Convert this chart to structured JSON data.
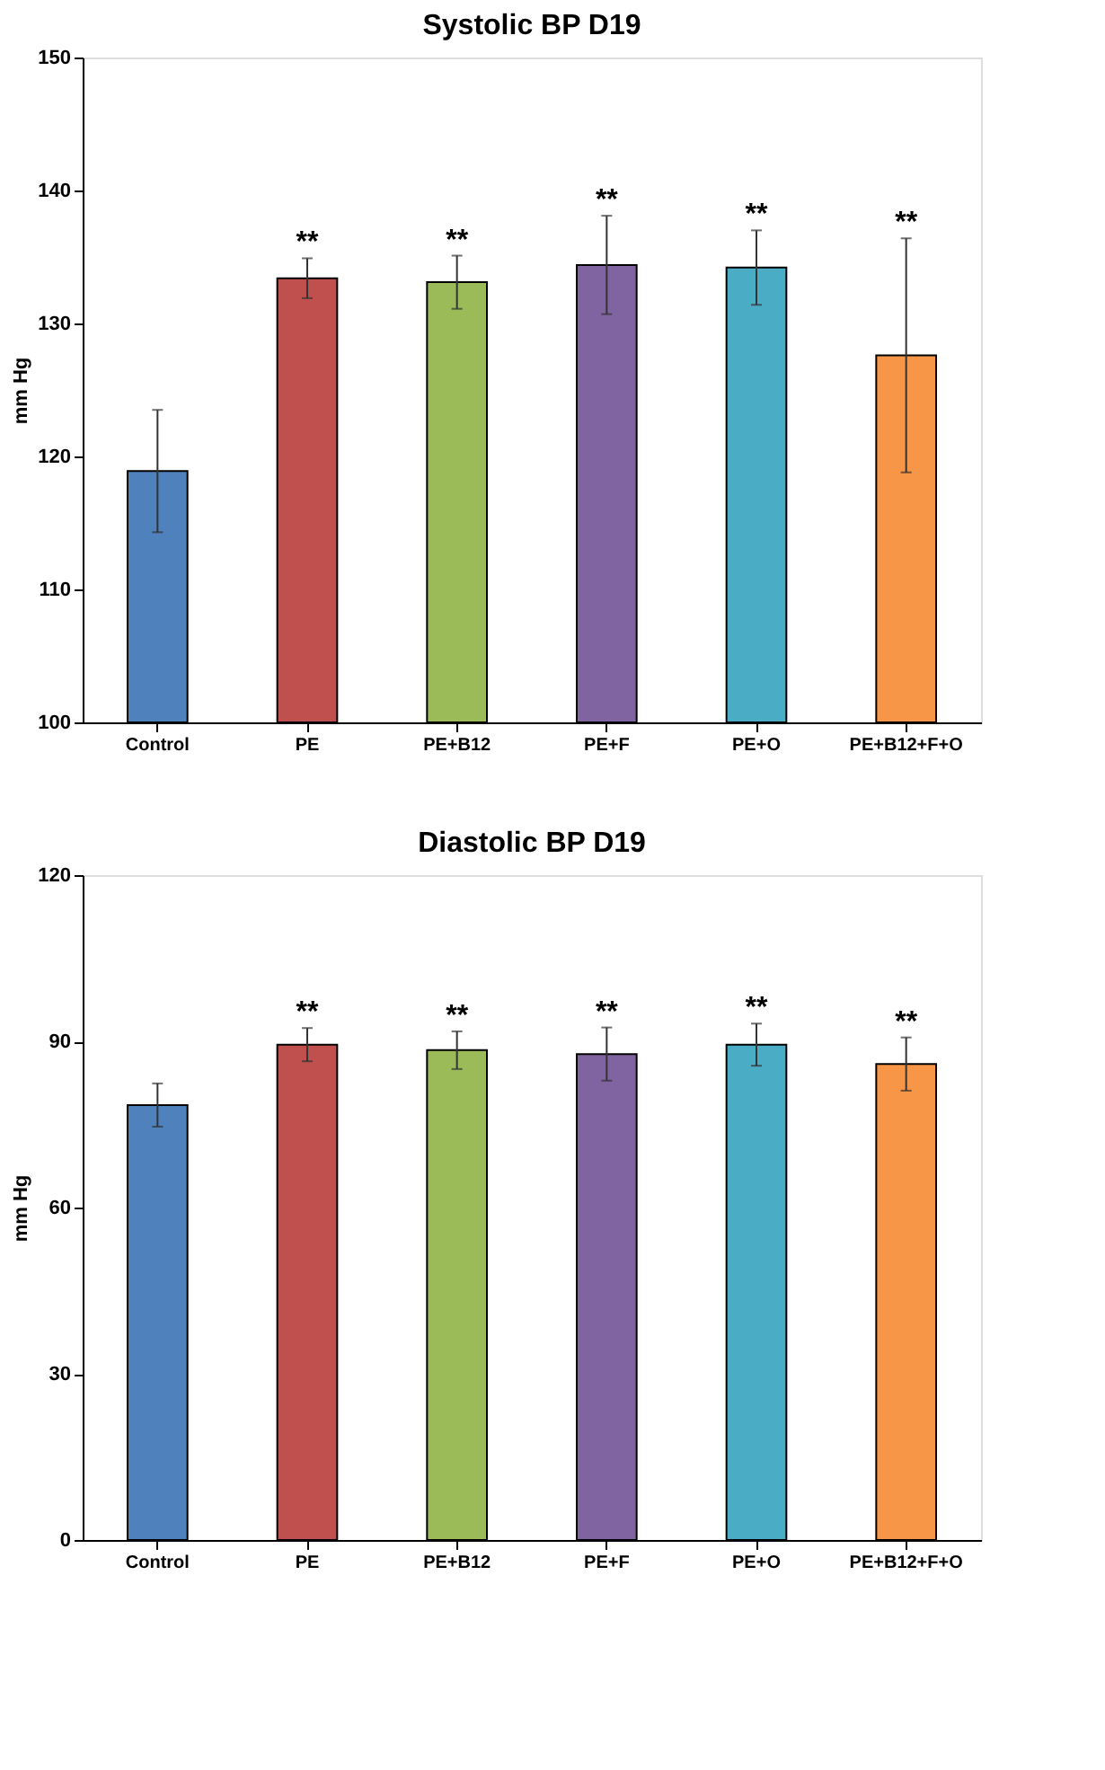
{
  "chart_data": [
    {
      "type": "bar",
      "title": "Systolic BP D19",
      "ylabel": "mm Hg",
      "categories": [
        "Control",
        "PE",
        "PE+B12",
        "PE+F",
        "PE+O",
        "PE+B12+F+O"
      ],
      "values": [
        118.9,
        133.4,
        133.1,
        134.4,
        134.2,
        127.6
      ],
      "errors": [
        4.6,
        1.5,
        2.0,
        3.7,
        2.8,
        8.8
      ],
      "colors": [
        "#4f81bd",
        "#c0504d",
        "#9bbb59",
        "#8064a2",
        "#4bacc6",
        "#f79646"
      ],
      "ylim": [
        100,
        150
      ],
      "yticks": [
        100,
        110,
        120,
        130,
        140,
        150
      ],
      "grid": false,
      "annotations": [
        {
          "text": "**",
          "x": "PE",
          "y": 134.9
        },
        {
          "text": "**",
          "x": "PE+B12",
          "y": 135.1
        },
        {
          "text": "**",
          "x": "PE+F",
          "y": 138.1
        },
        {
          "text": "**",
          "x": "PE+O",
          "y": 137.0
        },
        {
          "text": "**",
          "x": "PE+B12+F+O",
          "y": 136.4
        }
      ]
    },
    {
      "type": "bar",
      "title": "Diastolic BP D19",
      "ylabel": "mm Hg",
      "categories": [
        "Control",
        "PE",
        "PE+B12",
        "PE+F",
        "PE+O",
        "PE+B12+F+O"
      ],
      "values": [
        78.5,
        89.4,
        88.4,
        87.7,
        89.4,
        85.9
      ],
      "errors": [
        3.9,
        3.0,
        3.4,
        4.8,
        3.8,
        4.8
      ],
      "colors": [
        "#4f81bd",
        "#c0504d",
        "#9bbb59",
        "#8064a2",
        "#4bacc6",
        "#f79646"
      ],
      "ylim": [
        0,
        120
      ],
      "yticks": [
        0,
        30,
        60,
        90,
        120
      ],
      "grid": false,
      "annotations": [
        {
          "text": "**",
          "x": "PE",
          "y": 92.4
        },
        {
          "text": "**",
          "x": "PE+B12",
          "y": 91.8
        },
        {
          "text": "**",
          "x": "PE+F",
          "y": 92.5
        },
        {
          "text": "**",
          "x": "PE+O",
          "y": 93.2
        },
        {
          "text": "**",
          "x": "PE+B12+F+O",
          "y": 90.7
        }
      ]
    }
  ]
}
